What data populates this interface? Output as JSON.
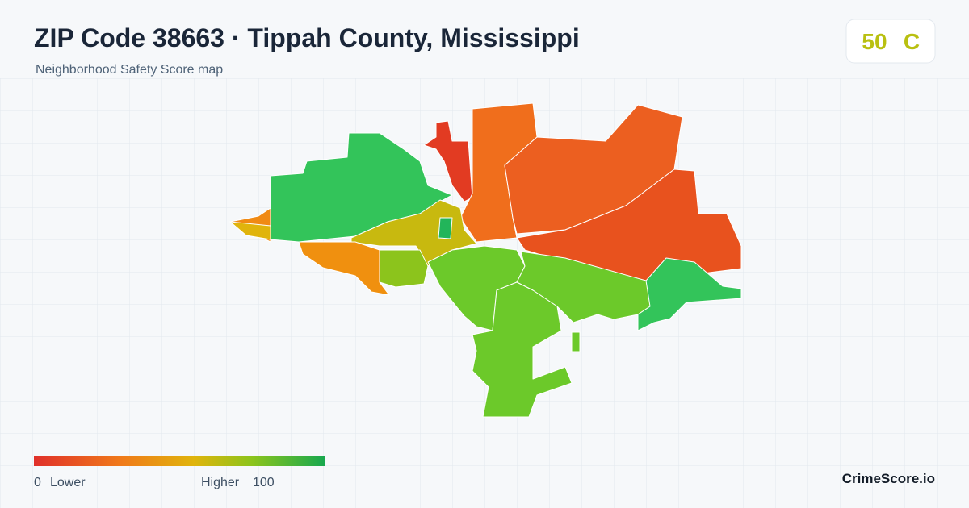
{
  "header": {
    "title": "ZIP Code 38663 · Tippah County, Mississippi",
    "subtitle": "Neighborhood Safety Score map"
  },
  "score": {
    "value": 50,
    "grade": "C"
  },
  "legend": {
    "min": 0,
    "min_label": "Lower",
    "max_label": "Higher",
    "max": 100
  },
  "brand": "CrimeScore.io"
}
